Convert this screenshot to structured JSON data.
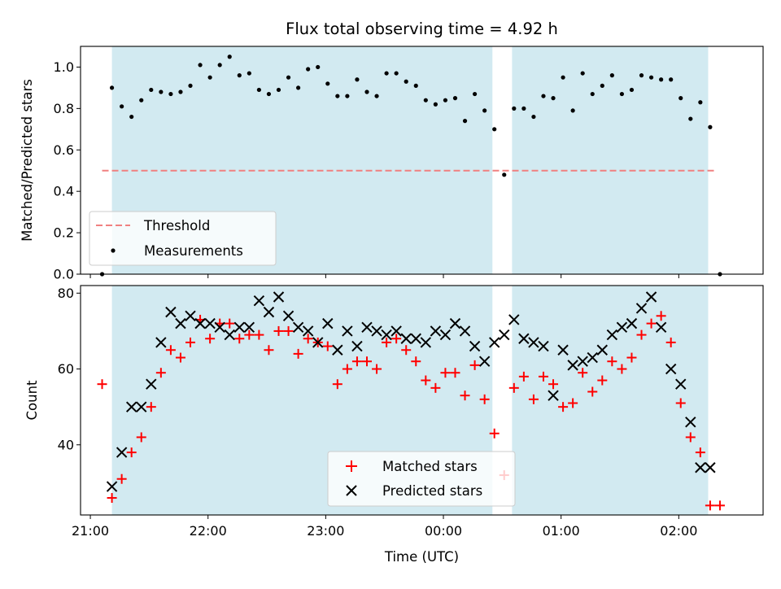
{
  "chart_data": [
    {
      "type": "scatter",
      "title": "Flux total observing time = 4.92 h",
      "xlabel": "",
      "ylabel": "Matched/Predicted stars",
      "xlim": [
        "20:55",
        "02:43"
      ],
      "ylim": [
        0,
        1.1
      ],
      "x_ticks": [
        "21:00",
        "22:00",
        "23:00",
        "00:00",
        "01:00",
        "02:00"
      ],
      "y_ticks": [
        "0.0",
        "0.2",
        "0.4",
        "0.6",
        "0.8",
        "1.0"
      ],
      "y_tick_values": [
        0,
        0.2,
        0.4,
        0.6,
        0.8,
        1.0
      ],
      "legend_position": "lower-left",
      "shaded_intervals": [
        [
          "21:11",
          "00:25"
        ],
        [
          "00:35",
          "02:15"
        ]
      ],
      "shade_color": "#add8e6",
      "threshold": {
        "name": "Threshold",
        "value": 0.5,
        "x_start": "21:06",
        "x_end": "02:19",
        "color": "#f08080",
        "style": "dashed"
      },
      "series": [
        {
          "name": "Measurements",
          "color": "#000000",
          "marker": "dot",
          "x": [
            "21:06",
            "21:11",
            "21:16",
            "21:21",
            "21:26",
            "21:31",
            "21:36",
            "21:41",
            "21:46",
            "21:51",
            "21:56",
            "22:01",
            "22:06",
            "22:11",
            "22:16",
            "22:21",
            "22:26",
            "22:31",
            "22:36",
            "22:41",
            "22:46",
            "22:51",
            "22:56",
            "23:01",
            "23:06",
            "23:11",
            "23:16",
            "23:21",
            "23:26",
            "23:31",
            "23:36",
            "23:41",
            "23:46",
            "23:51",
            "23:56",
            "00:01",
            "00:06",
            "00:11",
            "00:16",
            "00:21",
            "00:26",
            "00:31",
            "00:36",
            "00:41",
            "00:46",
            "00:51",
            "00:56",
            "01:01",
            "01:06",
            "01:11",
            "01:16",
            "01:21",
            "01:26",
            "01:31",
            "01:36",
            "01:41",
            "01:46",
            "01:51",
            "01:56",
            "02:01",
            "02:06",
            "02:11",
            "02:16",
            "02:21"
          ],
          "y": [
            0.0,
            0.9,
            0.81,
            0.76,
            0.84,
            0.89,
            0.88,
            0.87,
            0.88,
            0.91,
            1.01,
            0.95,
            1.01,
            1.05,
            0.96,
            0.97,
            0.89,
            0.87,
            0.89,
            0.95,
            0.9,
            0.99,
            1.0,
            0.92,
            0.86,
            0.86,
            0.94,
            0.88,
            0.86,
            0.97,
            0.97,
            0.93,
            0.91,
            0.84,
            0.82,
            0.84,
            0.85,
            0.74,
            0.87,
            0.79,
            0.7,
            0.48,
            0.8,
            0.8,
            0.76,
            0.86,
            0.85,
            0.95,
            0.79,
            0.97,
            0.87,
            0.91,
            0.96,
            0.87,
            0.89,
            0.96,
            0.95,
            0.94,
            0.94,
            0.85,
            0.75,
            0.83,
            0.71,
            0.0
          ]
        }
      ]
    },
    {
      "type": "scatter",
      "title": "",
      "xlabel": "Time (UTC)",
      "ylabel": "Count",
      "xlim": [
        "20:55",
        "02:43"
      ],
      "ylim": [
        21.5,
        82
      ],
      "x_ticks": [
        "21:00",
        "22:00",
        "23:00",
        "00:00",
        "01:00",
        "02:00"
      ],
      "y_ticks": [
        "40",
        "60",
        "80"
      ],
      "y_tick_values": [
        40,
        60,
        80
      ],
      "legend_position": "lower-center",
      "shaded_intervals": [
        [
          "21:11",
          "00:25"
        ],
        [
          "00:35",
          "02:15"
        ]
      ],
      "shade_color": "#add8e6",
      "series": [
        {
          "name": "Matched stars",
          "color": "#ff0000",
          "marker": "plus",
          "x": [
            "21:06",
            "21:11",
            "21:16",
            "21:21",
            "21:26",
            "21:31",
            "21:36",
            "21:41",
            "21:46",
            "21:51",
            "21:56",
            "22:01",
            "22:06",
            "22:11",
            "22:16",
            "22:21",
            "22:26",
            "22:31",
            "22:36",
            "22:41",
            "22:46",
            "22:51",
            "22:56",
            "23:01",
            "23:06",
            "23:11",
            "23:16",
            "23:21",
            "23:26",
            "23:31",
            "23:36",
            "23:41",
            "23:46",
            "23:51",
            "23:56",
            "00:01",
            "00:06",
            "00:11",
            "00:16",
            "00:21",
            "00:26",
            "00:31",
            "00:36",
            "00:41",
            "00:46",
            "00:51",
            "00:56",
            "01:01",
            "01:06",
            "01:11",
            "01:16",
            "01:21",
            "01:26",
            "01:31",
            "01:36",
            "01:41",
            "01:46",
            "01:51",
            "01:56",
            "02:01",
            "02:06",
            "02:11",
            "02:16",
            "02:21"
          ],
          "y": [
            56,
            26,
            31,
            38,
            42,
            50,
            59,
            65,
            63,
            67,
            73,
            68,
            72,
            72,
            68,
            69,
            69,
            65,
            70,
            70,
            64,
            68,
            67,
            66,
            56,
            60,
            62,
            62,
            60,
            67,
            68,
            65,
            62,
            57,
            55,
            59,
            59,
            53,
            61,
            52,
            43,
            32,
            55,
            58,
            52,
            58,
            56,
            50,
            51,
            59,
            54,
            57,
            62,
            60,
            63,
            69,
            72,
            74,
            67,
            51,
            42,
            38,
            24,
            24
          ]
        },
        {
          "name": "Predicted stars",
          "color": "#000000",
          "marker": "x",
          "x": [
            "21:11",
            "21:16",
            "21:21",
            "21:26",
            "21:31",
            "21:36",
            "21:41",
            "21:46",
            "21:51",
            "21:56",
            "22:01",
            "22:06",
            "22:11",
            "22:16",
            "22:21",
            "22:26",
            "22:31",
            "22:36",
            "22:41",
            "22:46",
            "22:51",
            "22:56",
            "23:01",
            "23:06",
            "23:11",
            "23:16",
            "23:21",
            "23:26",
            "23:31",
            "23:36",
            "23:41",
            "23:46",
            "23:51",
            "23:56",
            "00:01",
            "00:06",
            "00:11",
            "00:16",
            "00:21",
            "00:26",
            "00:31",
            "00:36",
            "00:41",
            "00:46",
            "00:51",
            "00:56",
            "01:01",
            "01:06",
            "01:11",
            "01:16",
            "01:21",
            "01:26",
            "01:31",
            "01:36",
            "01:41",
            "01:46",
            "01:51",
            "01:56",
            "02:01",
            "02:06",
            "02:11",
            "02:16"
          ],
          "y": [
            29,
            38,
            50,
            50,
            56,
            67,
            75,
            72,
            74,
            72,
            72,
            71,
            69,
            71,
            71,
            78,
            75,
            79,
            74,
            71,
            70,
            67,
            72,
            65,
            70,
            66,
            71,
            70,
            69,
            70,
            68,
            68,
            67,
            70,
            69,
            72,
            70,
            66,
            62,
            67,
            69,
            73,
            68,
            67,
            66,
            53,
            65,
            61,
            62,
            63,
            65,
            69,
            71,
            72,
            76,
            79,
            71,
            60,
            56,
            46,
            34,
            34
          ]
        }
      ]
    }
  ]
}
